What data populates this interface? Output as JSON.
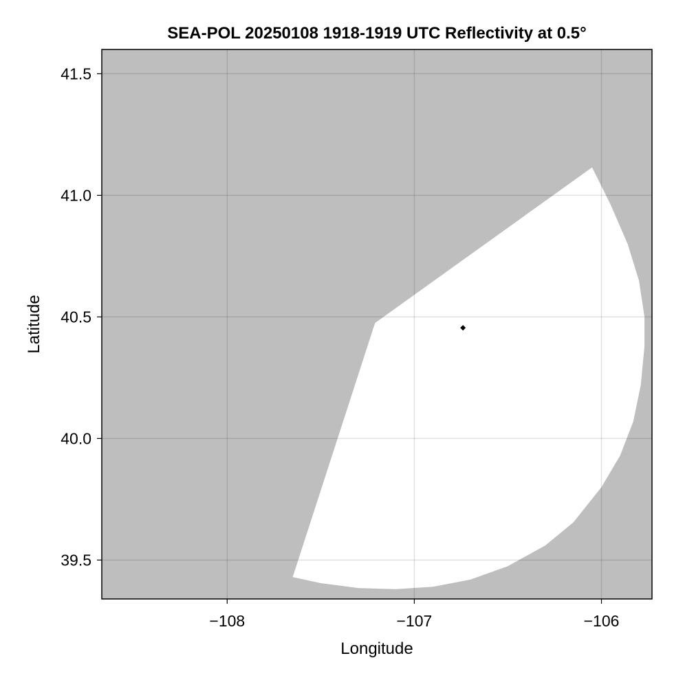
{
  "chart_data": {
    "type": "heatmap",
    "title": "SEA-POL 20250108 1918-1919 UTC Reflectivity at 0.5°",
    "xlabel": "Longitude",
    "ylabel": "Latitude",
    "xlim": [
      -108.67,
      -105.73
    ],
    "ylim": [
      39.34,
      41.6
    ],
    "xticks": [
      -108,
      -107,
      -106
    ],
    "xtick_labels": [
      "−108",
      "−107",
      "−106"
    ],
    "yticks": [
      39.5,
      40.0,
      40.5,
      41.0,
      41.5
    ],
    "ytick_labels": [
      "39.5",
      "40.0",
      "40.5",
      "41.0",
      "41.5"
    ],
    "grid": true,
    "background_color": "#bebebe",
    "coverage_color": "#ffffff",
    "radar_site": {
      "lon": -106.74,
      "lat": 40.455
    },
    "coverage_sector": {
      "center": {
        "lon": -106.74,
        "lat": 40.455
      },
      "outline": [
        {
          "lon": -107.21,
          "lat": 40.475
        },
        {
          "lon": -107.65,
          "lat": 39.43
        },
        {
          "lon": -107.5,
          "lat": 39.405
        },
        {
          "lon": -107.3,
          "lat": 39.385
        },
        {
          "lon": -107.1,
          "lat": 39.38
        },
        {
          "lon": -106.9,
          "lat": 39.39
        },
        {
          "lon": -106.7,
          "lat": 39.42
        },
        {
          "lon": -106.5,
          "lat": 39.475
        },
        {
          "lon": -106.3,
          "lat": 39.56
        },
        {
          "lon": -106.15,
          "lat": 39.655
        },
        {
          "lon": -106.0,
          "lat": 39.8
        },
        {
          "lon": -105.9,
          "lat": 39.93
        },
        {
          "lon": -105.83,
          "lat": 40.07
        },
        {
          "lon": -105.79,
          "lat": 40.22
        },
        {
          "lon": -105.77,
          "lat": 40.38
        },
        {
          "lon": -105.77,
          "lat": 40.5
        },
        {
          "lon": -105.8,
          "lat": 40.65
        },
        {
          "lon": -105.86,
          "lat": 40.8
        },
        {
          "lon": -105.95,
          "lat": 40.96
        },
        {
          "lon": -106.05,
          "lat": 41.115
        },
        {
          "lon": -107.21,
          "lat": 40.475
        }
      ]
    }
  }
}
